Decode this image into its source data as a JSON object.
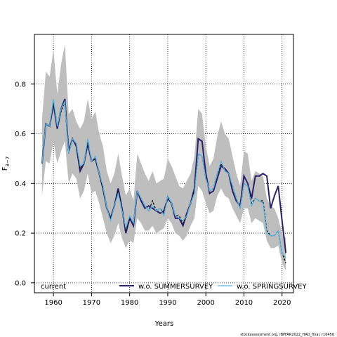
{
  "chart_data": {
    "type": "line",
    "xlabel": "Years",
    "ylabel_main": "F",
    "ylabel_sub": "3−7",
    "xlim": [
      1955,
      2023
    ],
    "ylim": [
      -0.04,
      1.0
    ],
    "xticks": [
      1960,
      1970,
      1980,
      1990,
      2000,
      2010,
      2020
    ],
    "yticks": [
      0.0,
      0.2,
      0.4,
      0.6,
      0.8
    ],
    "ytick_labels": [
      "0.0",
      "0.2",
      "0.4",
      "0.6",
      "0.8"
    ],
    "grid": true,
    "legend_placement": "bottom",
    "footnote": "stockassessment.org, IBPFAR2022_HAD_final, r16456",
    "legend": [
      {
        "label": "current"
      },
      {
        "label": "w.o. SUMMERSURVEY"
      },
      {
        "label": "w.o. SPRINGSURVEY"
      }
    ],
    "x": [
      1957,
      1958,
      1959,
      1960,
      1961,
      1962,
      1963,
      1964,
      1965,
      1966,
      1967,
      1968,
      1969,
      1970,
      1971,
      1972,
      1973,
      1974,
      1975,
      1976,
      1977,
      1978,
      1979,
      1980,
      1981,
      1982,
      1983,
      1984,
      1985,
      1986,
      1987,
      1988,
      1989,
      1990,
      1991,
      1992,
      1993,
      1994,
      1995,
      1996,
      1997,
      1998,
      1999,
      2000,
      2001,
      2002,
      2003,
      2004,
      2005,
      2006,
      2007,
      2008,
      2009,
      2010,
      2011,
      2012,
      2013,
      2014,
      2015,
      2016,
      2017,
      2018,
      2019,
      2020,
      2021
    ],
    "band_upper": [
      0.66,
      0.85,
      0.83,
      0.94,
      0.76,
      0.88,
      0.96,
      0.68,
      0.7,
      0.65,
      0.62,
      0.65,
      0.74,
      0.66,
      0.69,
      0.6,
      0.55,
      0.45,
      0.4,
      0.44,
      0.52,
      0.43,
      0.35,
      0.38,
      0.33,
      0.52,
      0.48,
      0.44,
      0.41,
      0.45,
      0.4,
      0.41,
      0.42,
      0.5,
      0.47,
      0.43,
      0.39,
      0.38,
      0.41,
      0.44,
      0.51,
      0.7,
      0.68,
      0.55,
      0.47,
      0.5,
      0.59,
      0.65,
      0.6,
      0.58,
      0.51,
      0.44,
      0.39,
      0.53,
      0.52,
      0.41,
      0.45,
      0.44,
      0.43,
      0.34,
      0.31,
      0.3,
      0.26,
      0.2,
      0.18
    ],
    "band_lower": [
      0.35,
      0.49,
      0.48,
      0.57,
      0.48,
      0.53,
      0.57,
      0.4,
      0.44,
      0.42,
      0.34,
      0.37,
      0.44,
      0.36,
      0.37,
      0.32,
      0.26,
      0.2,
      0.16,
      0.19,
      0.24,
      0.18,
      0.14,
      0.17,
      0.16,
      0.26,
      0.24,
      0.21,
      0.21,
      0.23,
      0.2,
      0.21,
      0.22,
      0.26,
      0.24,
      0.2,
      0.19,
      0.17,
      0.19,
      0.23,
      0.26,
      0.39,
      0.37,
      0.32,
      0.28,
      0.29,
      0.35,
      0.38,
      0.35,
      0.34,
      0.3,
      0.27,
      0.24,
      0.3,
      0.3,
      0.24,
      0.26,
      0.25,
      0.24,
      0.17,
      0.14,
      0.14,
      0.15,
      0.08,
      0.05
    ],
    "series": [
      {
        "name": "current",
        "values": [
          0.48,
          0.64,
          0.63,
          0.73,
          0.63,
          0.69,
          0.73,
          0.52,
          0.58,
          0.56,
          0.46,
          0.48,
          0.57,
          0.49,
          0.5,
          0.44,
          0.38,
          0.3,
          0.26,
          0.31,
          0.37,
          0.29,
          0.21,
          0.26,
          0.24,
          0.37,
          0.34,
          0.31,
          0.29,
          0.33,
          0.29,
          0.3,
          0.28,
          0.35,
          0.32,
          0.27,
          0.27,
          0.24,
          0.27,
          0.32,
          0.37,
          0.52,
          0.51,
          0.42,
          0.37,
          0.38,
          0.44,
          0.48,
          0.45,
          0.44,
          0.39,
          0.34,
          0.3,
          0.4,
          0.39,
          0.32,
          0.34,
          0.33,
          0.33,
          0.21,
          0.19,
          0.19,
          0.21,
          0.12,
          0.08
        ]
      },
      {
        "name": "w.o. SUMMERSURVEY",
        "values": [
          0.48,
          0.64,
          0.63,
          0.72,
          0.62,
          0.7,
          0.74,
          0.53,
          0.58,
          0.55,
          0.45,
          0.48,
          0.56,
          0.49,
          0.5,
          0.44,
          0.38,
          0.3,
          0.26,
          0.31,
          0.38,
          0.3,
          0.2,
          0.26,
          0.23,
          0.37,
          0.33,
          0.3,
          0.31,
          0.3,
          0.29,
          0.28,
          0.29,
          0.34,
          0.32,
          0.26,
          0.26,
          0.23,
          0.28,
          0.32,
          0.38,
          0.58,
          0.57,
          0.44,
          0.36,
          0.37,
          0.42,
          0.47,
          0.46,
          0.44,
          0.37,
          0.33,
          0.31,
          0.43,
          0.4,
          0.34,
          0.43,
          0.43,
          0.44,
          0.43,
          0.3,
          0.35,
          0.39,
          0.25,
          0.12
        ]
      },
      {
        "name": "w.o. SPRINGSURVEY",
        "values": [
          0.48,
          0.64,
          0.63,
          0.74,
          0.63,
          0.7,
          0.73,
          0.52,
          0.58,
          0.56,
          0.47,
          0.48,
          0.58,
          0.49,
          0.51,
          0.44,
          0.39,
          0.3,
          0.25,
          0.31,
          0.36,
          0.29,
          0.22,
          0.27,
          0.24,
          0.37,
          0.34,
          0.31,
          0.29,
          0.31,
          0.29,
          0.3,
          0.27,
          0.35,
          0.32,
          0.27,
          0.26,
          0.25,
          0.27,
          0.32,
          0.36,
          0.52,
          0.51,
          0.42,
          0.37,
          0.38,
          0.44,
          0.49,
          0.45,
          0.44,
          0.39,
          0.34,
          0.3,
          0.4,
          0.39,
          0.31,
          0.34,
          0.33,
          0.32,
          0.2,
          0.19,
          0.19,
          0.21,
          0.12,
          0.1
        ]
      }
    ],
    "colors": {
      "band": "#bebebe",
      "current": "#000000",
      "summer": "#2c1f6b",
      "spring": "#4fb8e8",
      "grid": "#000000"
    }
  }
}
